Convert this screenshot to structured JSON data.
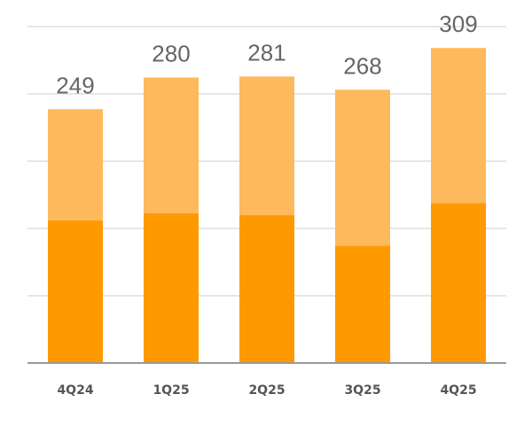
{
  "chart_data": {
    "type": "stacked_bar",
    "categories": [
      "4Q24",
      "1Q25",
      "2Q25",
      "3Q25",
      "4Q25"
    ],
    "series": [
      {
        "color": "#ff9900",
        "values": [
          140,
          147,
          145,
          115,
          157
        ]
      },
      {
        "color": "#fdb95c",
        "values": [
          109,
          133,
          136,
          153,
          152
        ]
      }
    ],
    "totals": [
      249,
      280,
      281,
      268,
      309
    ],
    "ylim": [
      0,
      330
    ],
    "yticks": [
      0,
      66,
      132,
      198,
      264,
      330
    ],
    "grid": true
  }
}
